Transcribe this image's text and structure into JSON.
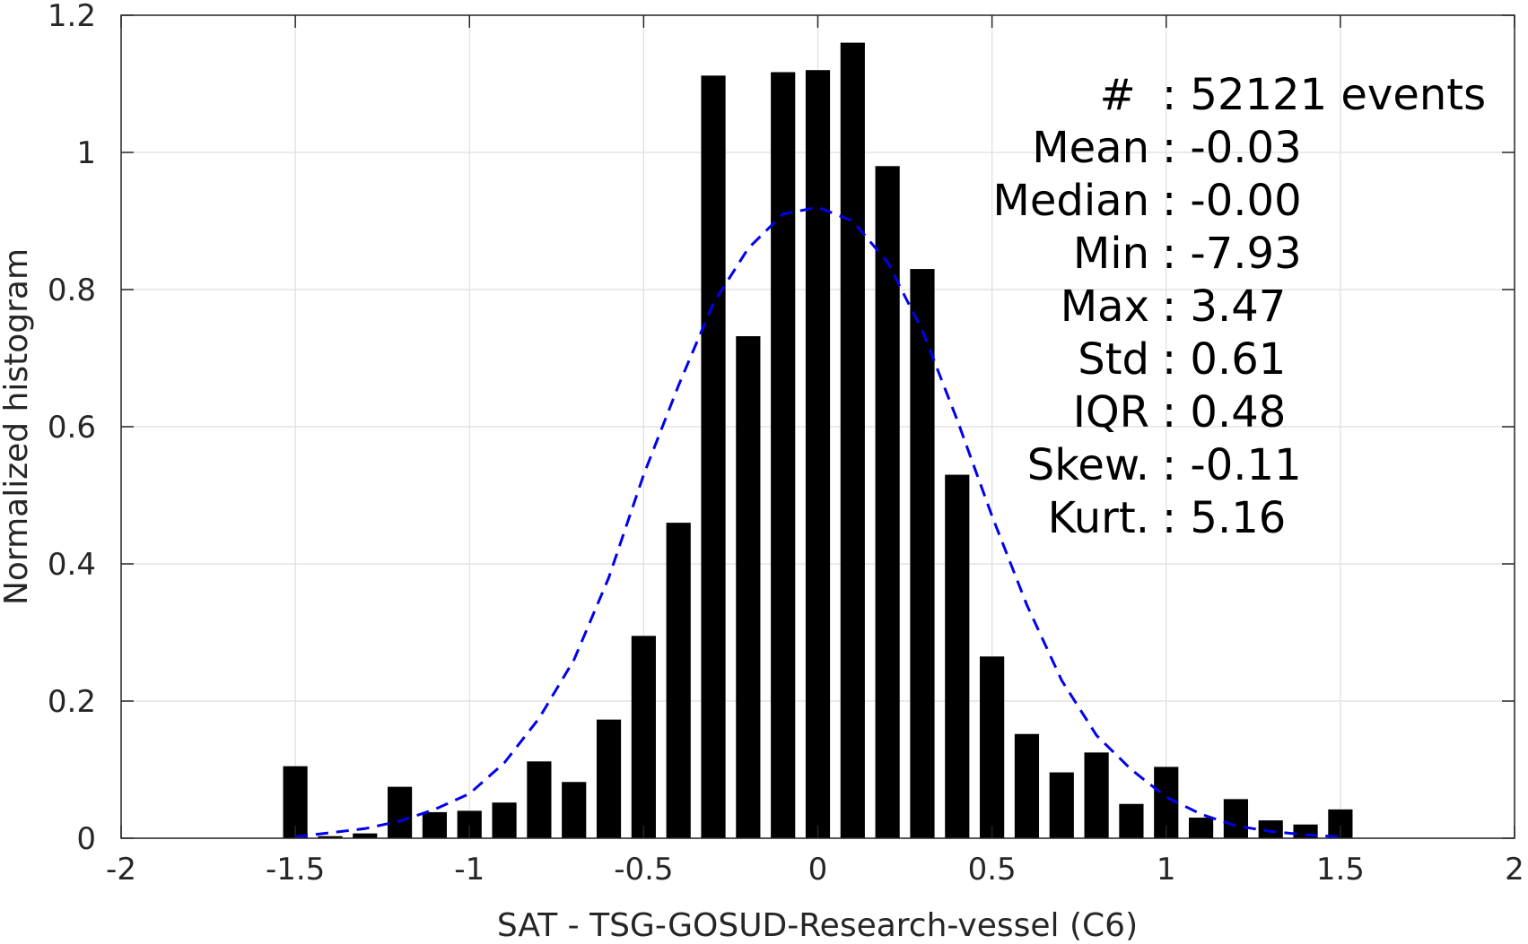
{
  "chart_data": {
    "type": "bar",
    "xlabel": "SAT - TSG-GOSUD-Research-vessel (C6)",
    "ylabel": "Normalized histogram",
    "xlim": [
      -2,
      2
    ],
    "ylim": [
      0,
      1.2
    ],
    "grid": true,
    "x_ticks": [
      "-2",
      "-1.5",
      "-1",
      "-0.5",
      "0",
      "0.5",
      "1",
      "1.5",
      "2"
    ],
    "x_tick_values": [
      -2,
      -1.5,
      -1,
      -0.5,
      0,
      0.5,
      1,
      1.5,
      2
    ],
    "y_ticks": [
      "0",
      "0.2",
      "0.4",
      "0.6",
      "0.8",
      "1",
      "1.2"
    ],
    "y_tick_values": [
      0,
      0.2,
      0.4,
      0.6,
      0.8,
      1,
      1.2
    ],
    "bar_color": "#000000",
    "bar_width": 0.07,
    "bars": {
      "x": [
        -1.5,
        -1.4,
        -1.3,
        -1.2,
        -1.1,
        -1.0,
        -0.9,
        -0.8,
        -0.7,
        -0.6,
        -0.5,
        -0.4,
        -0.3,
        -0.2,
        -0.1,
        0.0,
        0.1,
        0.2,
        0.3,
        0.4,
        0.5,
        0.6,
        0.7,
        0.8,
        0.9,
        1.0,
        1.1,
        1.2,
        1.3,
        1.4,
        1.5
      ],
      "values": [
        0.105,
        0.003,
        0.007,
        0.075,
        0.038,
        0.04,
        0.052,
        0.112,
        0.082,
        0.173,
        0.295,
        0.46,
        1.112,
        0.732,
        1.117,
        1.12,
        1.16,
        0.98,
        0.83,
        0.53,
        0.265,
        0.152,
        0.096,
        0.125,
        0.05,
        0.104,
        0.03,
        0.057,
        0.026,
        0.02,
        0.042
      ]
    },
    "fit": {
      "style": "dashed",
      "color": "#0000ee",
      "x": [
        -1.5,
        -1.4,
        -1.3,
        -1.2,
        -1.1,
        -1.0,
        -0.9,
        -0.8,
        -0.7,
        -0.6,
        -0.5,
        -0.4,
        -0.3,
        -0.2,
        -0.1,
        0.0,
        0.1,
        0.2,
        0.3,
        0.4,
        0.5,
        0.6,
        0.7,
        0.8,
        0.9,
        1.0,
        1.1,
        1.2,
        1.3,
        1.4,
        1.5
      ],
      "y": [
        0.002,
        0.008,
        0.014,
        0.025,
        0.042,
        0.065,
        0.11,
        0.175,
        0.26,
        0.38,
        0.53,
        0.66,
        0.78,
        0.86,
        0.91,
        0.92,
        0.9,
        0.84,
        0.74,
        0.61,
        0.47,
        0.34,
        0.23,
        0.15,
        0.1,
        0.06,
        0.035,
        0.018,
        0.01,
        0.005,
        0.002
      ]
    },
    "stats": [
      {
        "label": "#  ",
        "value": "52121 events"
      },
      {
        "label": "Mean",
        "value": "-0.03"
      },
      {
        "label": "Median",
        "value": "-0.00"
      },
      {
        "label": "Min",
        "value": "-7.93"
      },
      {
        "label": "Max",
        "value": "3.47"
      },
      {
        "label": "Std",
        "value": "0.61"
      },
      {
        "label": "IQR",
        "value": "0.48"
      },
      {
        "label": "Skew.",
        "value": "-0.11"
      },
      {
        "label": "Kurt.",
        "value": "5.16"
      }
    ]
  }
}
